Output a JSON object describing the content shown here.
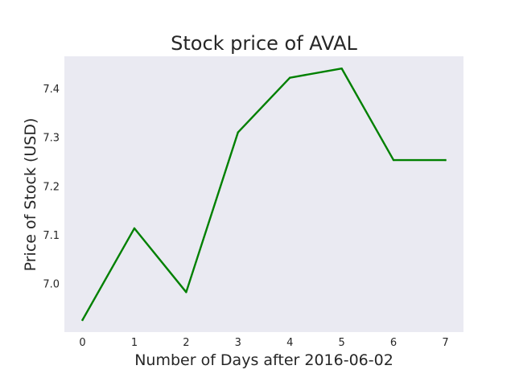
{
  "chart_data": {
    "type": "line",
    "title": "Stock price of AVAL",
    "xlabel": "Number of Days after 2016-06-02",
    "ylabel": "Price of Stock (USD)",
    "x": [
      0,
      1,
      2,
      3,
      4,
      5,
      6,
      7
    ],
    "series": [
      {
        "values": [
          6.926,
          7.114,
          6.983,
          7.311,
          7.423,
          7.442,
          7.254,
          7.254
        ],
        "color": "#008000"
      }
    ],
    "xticks": [
      0,
      1,
      2,
      3,
      4,
      5,
      6,
      7
    ],
    "yticks": [
      7.0,
      7.1,
      7.2,
      7.3,
      7.4
    ],
    "ytick_labels": [
      "7.0",
      "7.1",
      "7.2",
      "7.3",
      "7.4"
    ],
    "xlim": [
      -0.35,
      7.35
    ],
    "ylim": [
      6.901,
      7.467
    ],
    "grid": false,
    "background_color": "#eaeaf2"
  }
}
